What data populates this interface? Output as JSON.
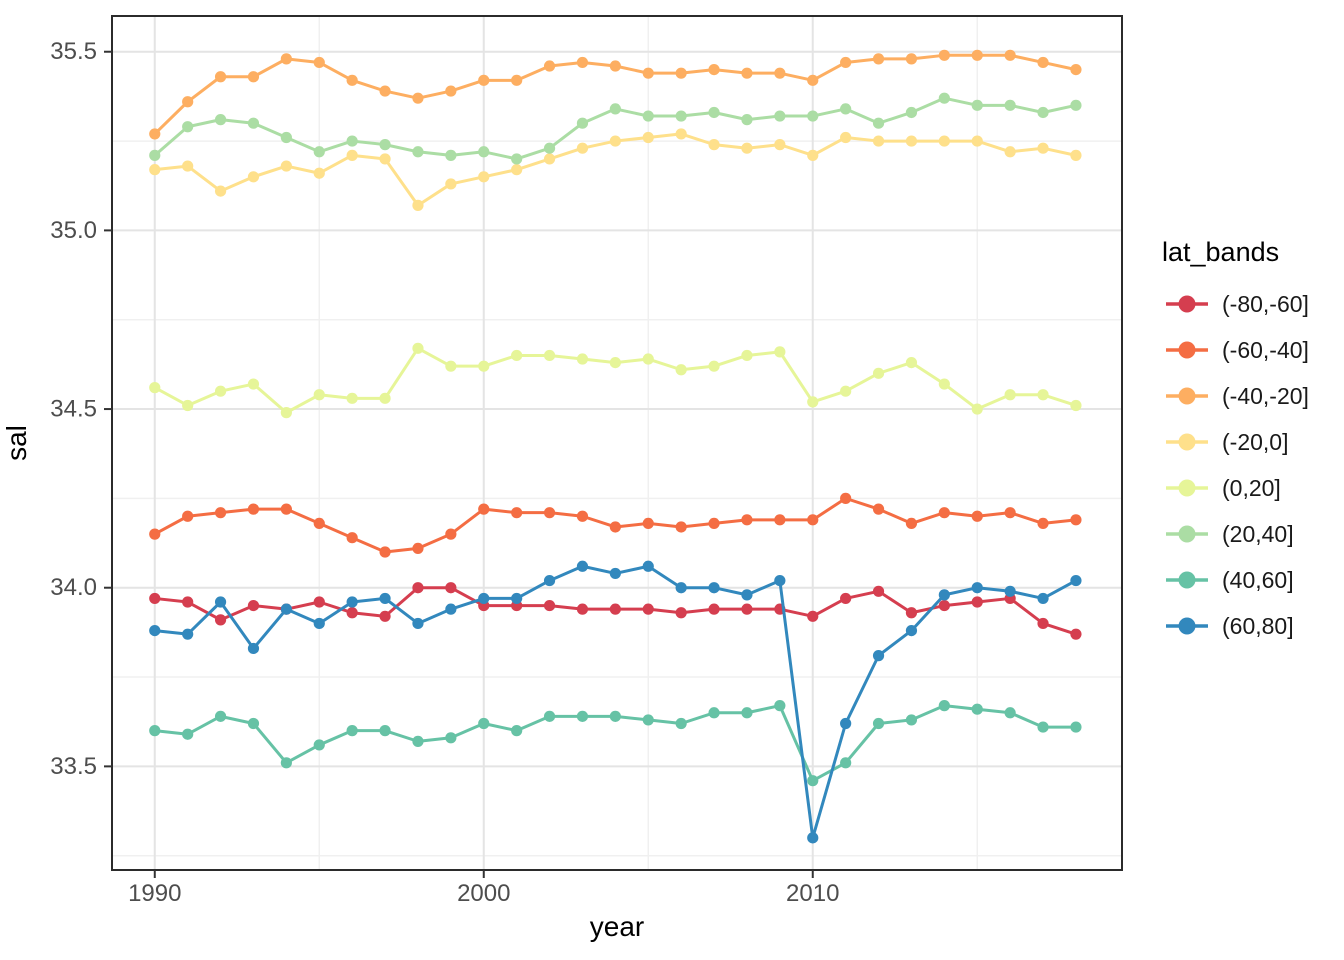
{
  "figure": {
    "background": "#ffffff"
  },
  "chart_data": {
    "type": "line",
    "title": "",
    "xlabel": "year",
    "ylabel": "sal",
    "legend_title": "lat_bands",
    "legend_position": "right",
    "grid": "major+minor",
    "xlim": [
      1988.7,
      2019.4
    ],
    "ylim": [
      33.21,
      35.6
    ],
    "x_major_ticks": [
      1990,
      2000,
      2010
    ],
    "x_minor_ticks": [
      1995,
      2005,
      2015
    ],
    "x_tick_labels": [
      "1990",
      "2000",
      "2010"
    ],
    "y_major_ticks": [
      33.5,
      34.0,
      34.5,
      35.0,
      35.5
    ],
    "y_minor_ticks": [
      33.25,
      33.75,
      34.25,
      34.75,
      35.25
    ],
    "y_tick_labels": [
      "33.5",
      "34.0",
      "34.5",
      "35.0",
      "35.5"
    ],
    "x": [
      1990,
      1991,
      1992,
      1993,
      1994,
      1995,
      1996,
      1997,
      1998,
      1999,
      2000,
      2001,
      2002,
      2003,
      2004,
      2005,
      2006,
      2007,
      2008,
      2009,
      2010,
      2011,
      2012,
      2013,
      2014,
      2015,
      2016,
      2017,
      2018
    ],
    "series": [
      {
        "name": "(-80,-60]",
        "color": "#d53e4f",
        "values": [
          33.97,
          33.96,
          33.91,
          33.95,
          33.94,
          33.96,
          33.93,
          33.92,
          34.0,
          34.0,
          33.95,
          33.95,
          33.95,
          33.94,
          33.94,
          33.94,
          33.93,
          33.94,
          33.94,
          33.94,
          33.92,
          33.97,
          33.99,
          33.93,
          33.95,
          33.96,
          33.97,
          33.9,
          33.87
        ]
      },
      {
        "name": "(-60,-40]",
        "color": "#f46d43",
        "values": [
          34.15,
          34.2,
          34.21,
          34.22,
          34.22,
          34.18,
          34.14,
          34.1,
          34.11,
          34.15,
          34.22,
          34.21,
          34.21,
          34.2,
          34.17,
          34.18,
          34.17,
          34.18,
          34.19,
          34.19,
          34.19,
          34.25,
          34.22,
          34.18,
          34.21,
          34.2,
          34.21,
          34.18,
          34.19
        ]
      },
      {
        "name": "(-40,-20]",
        "color": "#fdae61",
        "values": [
          35.27,
          35.36,
          35.43,
          35.43,
          35.48,
          35.47,
          35.42,
          35.39,
          35.37,
          35.39,
          35.42,
          35.42,
          35.46,
          35.47,
          35.46,
          35.44,
          35.44,
          35.45,
          35.44,
          35.44,
          35.42,
          35.47,
          35.48,
          35.48,
          35.49,
          35.49,
          35.49,
          35.47,
          35.45
        ]
      },
      {
        "name": "(-20,0]",
        "color": "#fee08b",
        "values": [
          35.17,
          35.18,
          35.11,
          35.15,
          35.18,
          35.16,
          35.21,
          35.2,
          35.07,
          35.13,
          35.15,
          35.17,
          35.2,
          35.23,
          35.25,
          35.26,
          35.27,
          35.24,
          35.23,
          35.24,
          35.21,
          35.26,
          35.25,
          35.25,
          35.25,
          35.25,
          35.22,
          35.23,
          35.21
        ]
      },
      {
        "name": "(0,20]",
        "color": "#e6f598",
        "values": [
          34.56,
          34.51,
          34.55,
          34.57,
          34.49,
          34.54,
          34.53,
          34.53,
          34.67,
          34.62,
          34.62,
          34.65,
          34.65,
          34.64,
          34.63,
          34.64,
          34.61,
          34.62,
          34.65,
          34.66,
          34.52,
          34.55,
          34.6,
          34.63,
          34.57,
          34.5,
          34.54,
          34.54,
          34.51
        ]
      },
      {
        "name": "(20,40]",
        "color": "#abdda4",
        "values": [
          35.21,
          35.29,
          35.31,
          35.3,
          35.26,
          35.22,
          35.25,
          35.24,
          35.22,
          35.21,
          35.22,
          35.2,
          35.23,
          35.3,
          35.34,
          35.32,
          35.32,
          35.33,
          35.31,
          35.32,
          35.32,
          35.34,
          35.3,
          35.33,
          35.37,
          35.35,
          35.35,
          35.33,
          35.35
        ]
      },
      {
        "name": "(40,60]",
        "color": "#66c2a5",
        "values": [
          33.6,
          33.59,
          33.64,
          33.62,
          33.51,
          33.56,
          33.6,
          33.6,
          33.57,
          33.58,
          33.62,
          33.6,
          33.64,
          33.64,
          33.64,
          33.63,
          33.62,
          33.65,
          33.65,
          33.67,
          33.46,
          33.51,
          33.62,
          33.63,
          33.67,
          33.66,
          33.65,
          33.61,
          33.61
        ]
      },
      {
        "name": "(60,80]",
        "color": "#3288bd",
        "values": [
          33.88,
          33.87,
          33.96,
          33.83,
          33.94,
          33.9,
          33.96,
          33.97,
          33.9,
          33.94,
          33.97,
          33.97,
          34.02,
          34.06,
          34.04,
          34.06,
          34.0,
          34.0,
          33.98,
          34.02,
          33.3,
          33.62,
          33.81,
          33.88,
          33.98,
          34.0,
          33.99,
          33.97,
          34.02
        ]
      }
    ]
  },
  "style_colors": {
    "grid_major": "#e4e4e4",
    "grid_minor": "#f0f0f0",
    "panel_border": "#2b2b2b",
    "tick_mark": "#333333",
    "tick_label": "#4d4d4d",
    "axis_title": "#000000"
  }
}
